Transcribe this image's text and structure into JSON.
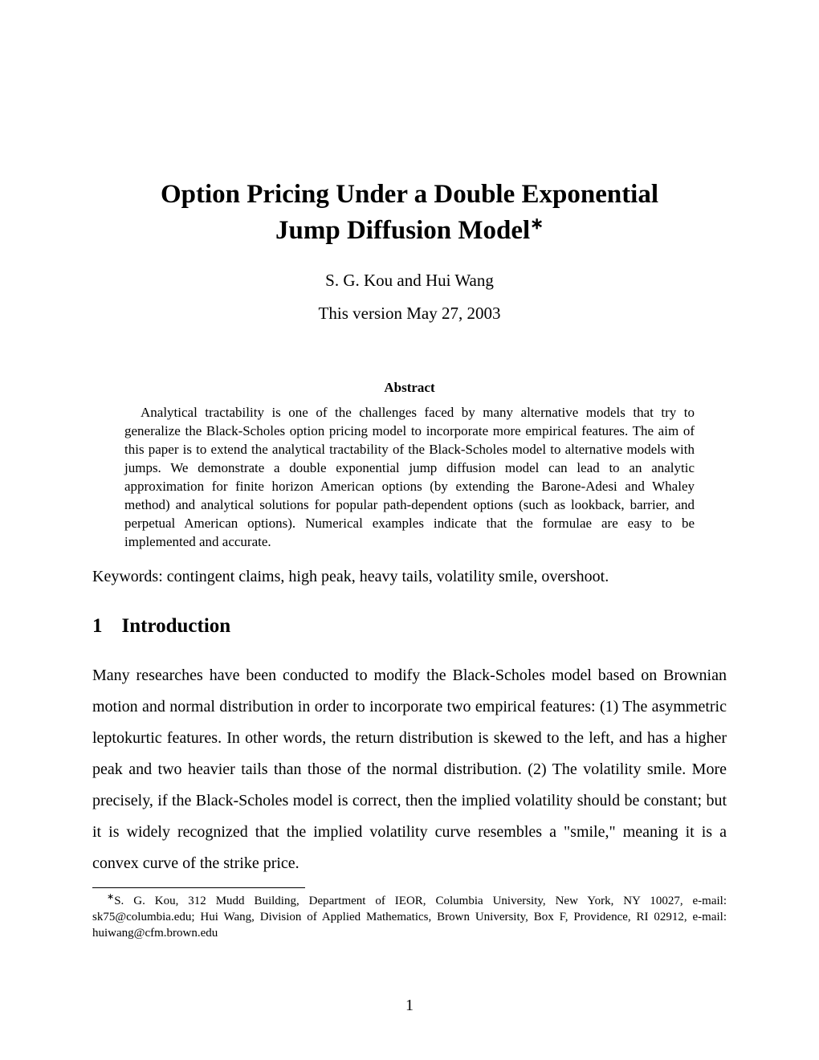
{
  "title": {
    "line1": "Option Pricing Under a Double Exponential",
    "line2": "Jump Diffusion Model",
    "marker": "∗"
  },
  "authors": "S. G. Kou and Hui Wang",
  "version": "This version May 27, 2003",
  "abstract": {
    "heading": "Abstract",
    "text": "Analytical tractability is one of the challenges faced by many alternative models that try to generalize the Black-Scholes option pricing model to incorporate more empirical features. The aim of this paper is to extend the analytical tractability of the Black-Scholes model to alternative models with jumps. We demonstrate a double exponential jump diffusion model can lead to an analytic approximation for finite horizon American options (by extending the Barone-Adesi and Whaley method) and analytical solutions for popular path-dependent options (such as lookback, barrier, and perpetual American options). Numerical examples indicate that the formulae are easy to be implemented and accurate."
  },
  "keywords": "Keywords: contingent claims, high peak, heavy tails, volatility smile, overshoot.",
  "section": {
    "number": "1",
    "title": "Introduction"
  },
  "body": "Many researches have been conducted to modify the Black-Scholes model based on Brownian motion and normal distribution in order to incorporate two empirical features: (1) The asymmetric leptokurtic features. In other words, the return distribution is skewed to the left, and has a higher peak and two heavier tails than those of the normal distribution. (2) The volatility smile. More precisely, if the Black-Scholes model is correct, then the implied volatility should be constant; but it is widely recognized that the implied volatility curve resembles a \"smile,\" meaning it is a convex curve of the strike price.",
  "footnote": {
    "marker": "∗",
    "text": "S. G. Kou, 312 Mudd Building, Department of IEOR, Columbia University, New York, NY 10027, e-mail: sk75@columbia.edu; Hui Wang, Division of Applied Mathematics, Brown University, Box F, Providence, RI 02912, e-mail: huiwang@cfm.brown.edu"
  },
  "page_number": "1"
}
